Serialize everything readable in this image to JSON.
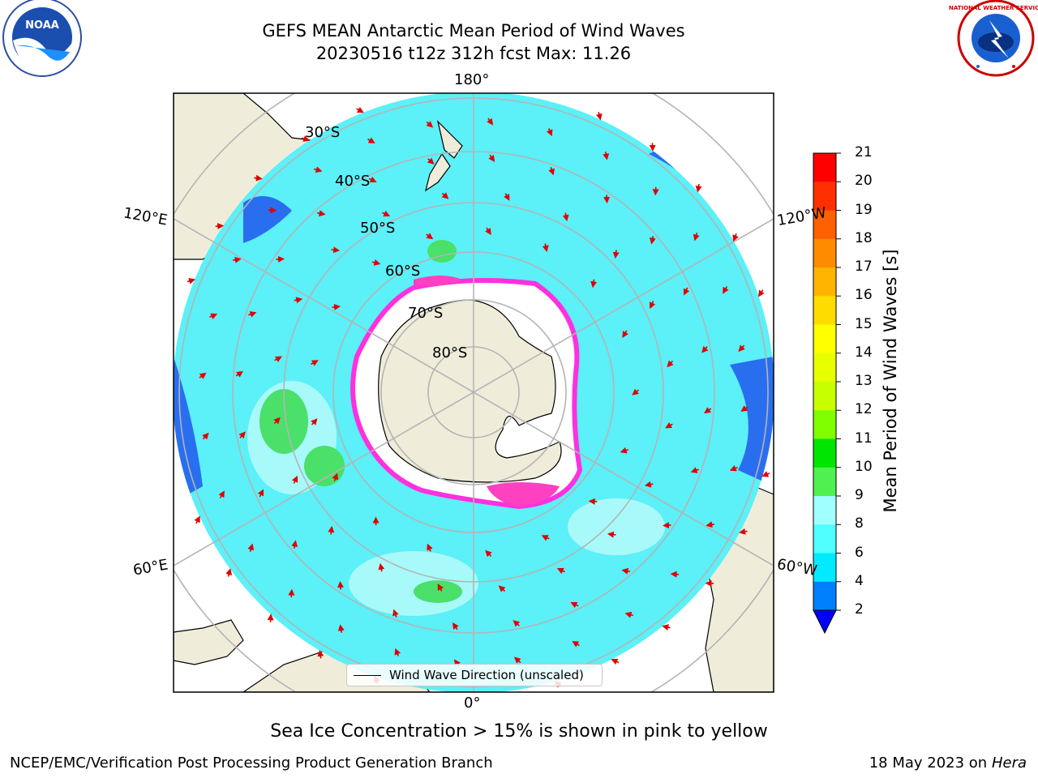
{
  "header": {
    "title": "GEFS MEAN Antarctic Mean Period of Wind Waves",
    "subtitle": "20230516 t12z 312h fcst   Max: 11.26"
  },
  "map": {
    "longitude_labels": {
      "top": "180°",
      "bottom": "0°",
      "upper_left": "120°E",
      "upper_right": "120°W",
      "lower_left": "60°E",
      "lower_right": "60°W"
    },
    "latitude_labels": [
      "30°S",
      "40°S",
      "50°S",
      "60°S",
      "70°S",
      "80°S"
    ],
    "legend_label": "Wind Wave Direction (unscaled)",
    "arrow_color": "#e00000",
    "ocean_base_color": "#5cf0f8",
    "land_color": "#efedda"
  },
  "colorbar": {
    "label": "Mean Period of Wind Waves [s]",
    "ticks": [
      "21",
      "20",
      "19",
      "18",
      "17",
      "16",
      "15",
      "14",
      "13",
      "12",
      "11",
      "10",
      "9",
      "8",
      "6",
      "4",
      "2"
    ],
    "colors": [
      "#ff0000",
      "#ff3000",
      "#ff6000",
      "#ff8c00",
      "#ffb400",
      "#ffdc00",
      "#ffff00",
      "#e8ff00",
      "#c8ff00",
      "#80ff00",
      "#00e600",
      "#50f050",
      "#a0ffff",
      "#50ffff",
      "#00ebff",
      "#0080ff",
      "#0000ff"
    ]
  },
  "sea_ice_note": "Sea Ice Concentration > 15% is shown in pink to yellow",
  "footer": {
    "left": "NCEP/EMC/Verification Post Processing Product Generation Branch",
    "date": "18 May 2023 on",
    "host": "Hera"
  },
  "logos": {
    "noaa_text": "NOAA",
    "nws_text": "NATIONAL WEATHER SERVICE"
  }
}
